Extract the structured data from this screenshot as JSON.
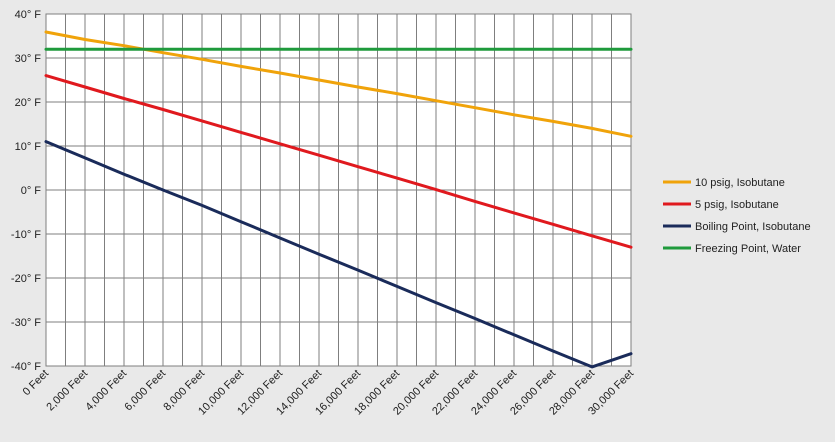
{
  "chart_data": {
    "type": "line",
    "title": "",
    "xlabel": "",
    "ylabel": "",
    "grid": true,
    "legend_position": "right",
    "xlim": [
      0,
      30000
    ],
    "ylim": [
      -40,
      40
    ],
    "x_tick_step": 1000,
    "x_tick_labels": [
      "0 Feet",
      "2,000 Feet",
      "4,000 Feet",
      "6,000 Feet",
      "8,000 Feet",
      "10,000 Feet",
      "12,000 Feet",
      "14,000 Feet",
      "16,000 Feet",
      "18,000 Feet",
      "20,000 Feet",
      "22,000 Feet",
      "24,000 Feet",
      "26,000 Feet",
      "28,000 Feet",
      "30,000 Feet"
    ],
    "x_tick_values": [
      0,
      2000,
      4000,
      6000,
      8000,
      10000,
      12000,
      14000,
      16000,
      18000,
      20000,
      22000,
      24000,
      26000,
      28000,
      30000
    ],
    "y_tick_labels": [
      "40° F",
      "30° F",
      "20° F",
      "10° F",
      "0° F",
      "-10° F",
      "-20° F",
      "-30° F",
      "-40° F"
    ],
    "y_tick_values": [
      40,
      30,
      20,
      10,
      0,
      -10,
      -20,
      -30,
      -40
    ],
    "x": [
      0,
      2000,
      4000,
      6000,
      8000,
      10000,
      12000,
      14000,
      16000,
      18000,
      20000,
      22000,
      24000,
      26000,
      28000,
      30000
    ],
    "series": [
      {
        "name": "10 psig, Isobutane",
        "color": "#f0a30a",
        "values": [
          35.9,
          34.2,
          32.8,
          31.2,
          29.7,
          28.1,
          26.6,
          25.0,
          23.4,
          21.9,
          20.3,
          18.7,
          17.1,
          15.6,
          14.0,
          12.2
        ]
      },
      {
        "name": "5 psig, Isobutane",
        "color": "#e0191e",
        "values": [
          26.0,
          23.4,
          20.8,
          18.3,
          15.7,
          13.1,
          10.5,
          7.9,
          5.3,
          2.7,
          0.1,
          -2.6,
          -5.2,
          -7.8,
          -10.4,
          -13.0
        ]
      },
      {
        "name": "Boiling Point, Isobutane",
        "color": "#1a2b5a",
        "values": [
          11.0,
          7.3,
          3.6,
          0.0,
          -3.5,
          -7.2,
          -10.9,
          -14.6,
          -18.2,
          -21.9,
          -25.6,
          -29.2,
          -32.9,
          -36.6,
          -40.2,
          -37.2
        ]
      },
      {
        "name": "Freezing Point, Water",
        "color": "#1f9a3c",
        "values": [
          32,
          32,
          32,
          32,
          32,
          32,
          32,
          32,
          32,
          32,
          32,
          32,
          32,
          32,
          32,
          32
        ]
      }
    ]
  }
}
